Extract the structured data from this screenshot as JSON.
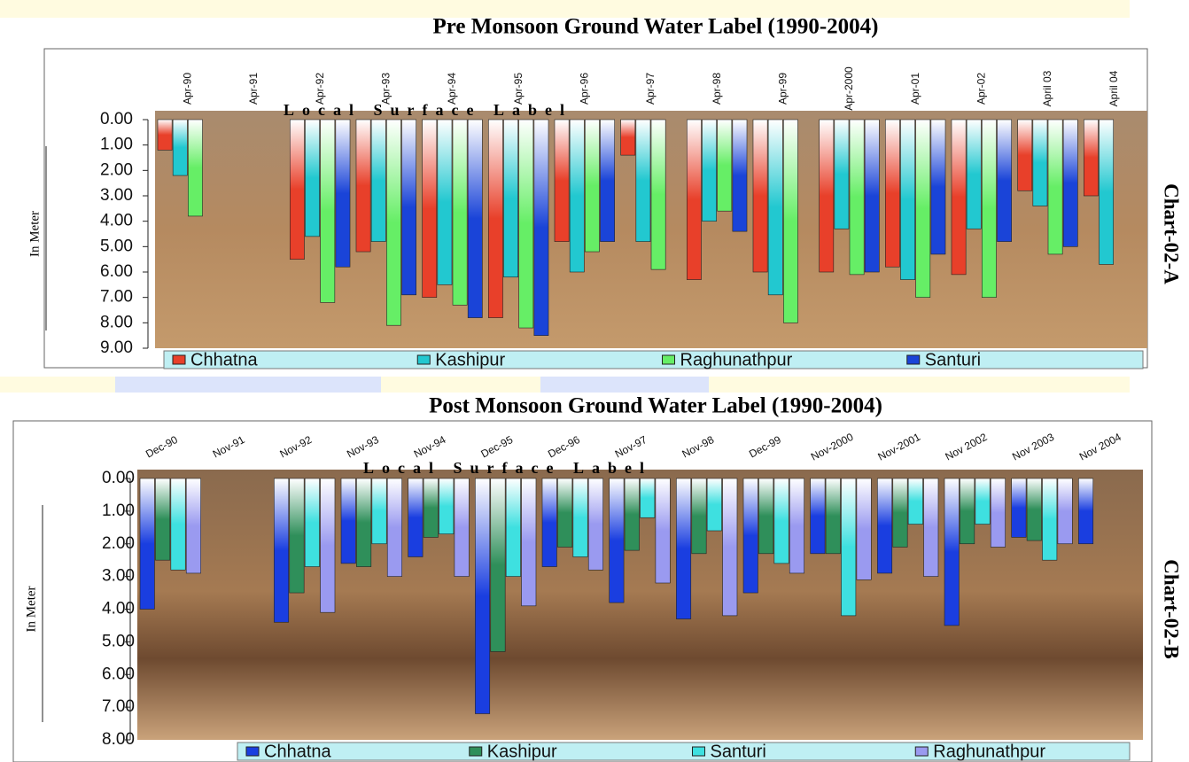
{
  "chart_data": [
    {
      "type": "bar",
      "title": "Pre Monsoon Ground Water Label (1990-2004)",
      "y_label": "In Meter",
      "side_label": "Chart-02-A",
      "annotation": "Local Surface Label",
      "y_inverted": true,
      "categories": [
        "Apr-90",
        "Apr-91",
        "Apr-92",
        "Apr-93",
        "Apr-94",
        "Apr-95",
        "Apr-96",
        "Apr-97",
        "Apr-98",
        "Apr-99",
        "Apr-2000",
        "Apr-01",
        "Apr-02",
        "April 03",
        "April 04"
      ],
      "series": [
        {
          "name": "Chhatna",
          "color": "#e8402a",
          "values": [
            1.2,
            null,
            5.5,
            5.2,
            7.0,
            7.8,
            4.8,
            1.4,
            6.3,
            6.0,
            6.0,
            5.8,
            6.1,
            2.8,
            3.0
          ]
        },
        {
          "name": "Kashipur",
          "color": "#22c8d0",
          "values": [
            2.2,
            null,
            4.6,
            4.8,
            6.5,
            6.2,
            6.0,
            4.8,
            4.0,
            6.9,
            4.3,
            6.3,
            4.3,
            3.4,
            5.7
          ]
        },
        {
          "name": "Raghunathpur",
          "color": "#66ee66",
          "values": [
            3.8,
            null,
            7.2,
            8.1,
            7.3,
            8.2,
            5.2,
            5.9,
            3.6,
            8.0,
            6.1,
            7.0,
            7.0,
            5.3,
            null
          ]
        },
        {
          "name": "Santuri",
          "color": "#1a44d8",
          "values": [
            null,
            null,
            5.8,
            6.9,
            7.8,
            8.5,
            4.8,
            null,
            4.4,
            null,
            6.0,
            5.3,
            4.8,
            5.0,
            null
          ]
        }
      ],
      "ylim": [
        0,
        9
      ],
      "yticks": [
        {
          "value": 0,
          "label": "0.00"
        },
        {
          "value": 1,
          "label": "1.00"
        },
        {
          "value": 2,
          "label": "2.00"
        },
        {
          "value": 3,
          "label": "3.00"
        },
        {
          "value": 4,
          "label": "4.00"
        },
        {
          "value": 5,
          "label": "5.00"
        },
        {
          "value": 6,
          "label": "6.00"
        },
        {
          "value": 7,
          "label": "7.00"
        },
        {
          "value": 8,
          "label": "8.00"
        },
        {
          "value": 9,
          "label": "9.00"
        }
      ]
    },
    {
      "type": "bar",
      "title": "Post Monsoon Ground Water Label (1990-2004)",
      "y_label": "In Meter",
      "side_label": "Chart-02-B",
      "annotation": "Local Surface Label",
      "y_inverted": true,
      "categories": [
        "Dec-90",
        "Nov-91",
        "Nov-92",
        "Nov-93",
        "Nov-94",
        "Dec-95",
        "Dec-96",
        "Nov-97",
        "Nov-98",
        "Dec-99",
        "Nov-2000",
        "Nov-2001",
        "Nov 2002",
        "Nov 2003",
        "Nov 2004"
      ],
      "series": [
        {
          "name": "Chhatna",
          "color": "#1a3ee0",
          "values": [
            4.0,
            null,
            4.4,
            2.6,
            2.4,
            7.2,
            2.7,
            3.8,
            4.3,
            3.5,
            2.3,
            2.9,
            4.5,
            1.8,
            2.0
          ]
        },
        {
          "name": "Kashipur",
          "color": "#2f8f5a",
          "values": [
            2.5,
            null,
            3.5,
            2.7,
            1.8,
            5.3,
            2.1,
            2.2,
            2.3,
            2.3,
            2.3,
            2.1,
            2.0,
            1.9,
            null
          ]
        },
        {
          "name": "Santuri",
          "color": "#3ee0e0",
          "values": [
            2.8,
            null,
            2.7,
            2.0,
            1.7,
            3.0,
            2.4,
            1.2,
            1.6,
            2.6,
            4.2,
            1.4,
            1.4,
            2.5,
            null
          ]
        },
        {
          "name": "Raghunathpur",
          "color": "#9a9af0",
          "values": [
            2.9,
            null,
            4.1,
            3.0,
            3.0,
            3.9,
            2.8,
            3.2,
            4.2,
            2.9,
            3.1,
            3.0,
            2.1,
            2.0,
            null
          ]
        }
      ],
      "ylim": [
        0,
        8
      ],
      "yticks": [
        {
          "value": 0,
          "label": "0.00"
        },
        {
          "value": 1,
          "label": "1.00"
        },
        {
          "value": 2,
          "label": "2.00"
        },
        {
          "value": 3,
          "label": "3.00"
        },
        {
          "value": 4,
          "label": "4.00"
        },
        {
          "value": 5,
          "label": "5.00"
        },
        {
          "value": 6,
          "label": "6.00"
        },
        {
          "value": 7,
          "label": "7.00"
        },
        {
          "value": 8,
          "label": "8.00"
        }
      ]
    }
  ]
}
